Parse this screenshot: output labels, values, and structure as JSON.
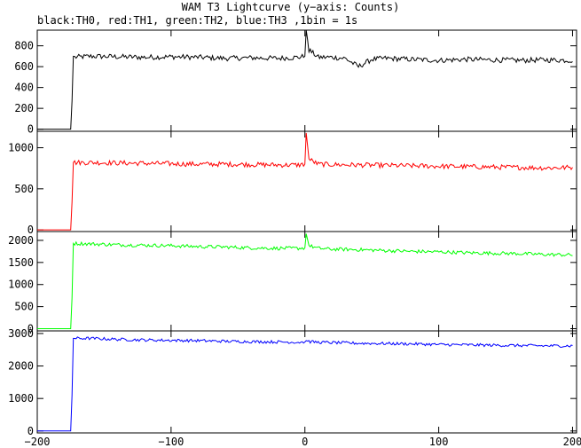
{
  "title": "WAM T3 Lightcurve (y−axis: Counts)",
  "subtitle": "black:TH0, red:TH1, green:TH2, blue:TH3 ,1bin = 1s",
  "chart_data": {
    "type": "line",
    "xlim": [
      -200,
      203
    ],
    "x_ticks": [
      -200,
      -100,
      0,
      100,
      200
    ],
    "x_tick_labels": [
      "−200",
      "−100",
      "0",
      "100",
      "200"
    ],
    "grid": false,
    "panels": [
      {
        "series_label": "TH0",
        "color": "#000000",
        "ylim": [
          -20,
          950
        ],
        "y_ticks": [
          0,
          200,
          400,
          600,
          800
        ],
        "y_tick_labels": [
          "0",
          "200",
          "400",
          "600",
          "800"
        ],
        "x": [
          -200,
          -175,
          -174,
          -173,
          -172,
          -160,
          -140,
          -120,
          -100,
          -80,
          -60,
          -40,
          -20,
          -5,
          0,
          1,
          3,
          10,
          20,
          30,
          40,
          50,
          60,
          80,
          100,
          120,
          140,
          160,
          180,
          200
        ],
        "y": [
          0,
          0,
          270,
          700,
          690,
          700,
          695,
          690,
          695,
          690,
          680,
          685,
          680,
          690,
          700,
          950,
          760,
          690,
          690,
          680,
          600,
          670,
          680,
          670,
          660,
          670,
          665,
          660,
          665,
          660
        ],
        "noise": 25
      },
      {
        "series_label": "TH1",
        "color": "#ff0000",
        "ylim": [
          -20,
          1200
        ],
        "y_ticks": [
          0,
          500,
          1000
        ],
        "y_tick_labels": [
          "0",
          "500",
          "1000"
        ],
        "x": [
          -200,
          -175,
          -174,
          -173,
          -172,
          -160,
          -140,
          -120,
          -100,
          -80,
          -60,
          -40,
          -20,
          -5,
          0,
          1,
          3,
          10,
          20,
          40,
          60,
          80,
          100,
          120,
          140,
          160,
          180,
          200
        ],
        "y": [
          0,
          0,
          340,
          820,
          820,
          820,
          815,
          810,
          805,
          800,
          800,
          795,
          790,
          790,
          800,
          1180,
          860,
          800,
          795,
          790,
          785,
          780,
          775,
          770,
          765,
          760,
          755,
          760
        ],
        "noise": 30
      },
      {
        "series_label": "TH2",
        "color": "#00ff00",
        "ylim": [
          -50,
          2200
        ],
        "y_ticks": [
          0,
          500,
          1000,
          1500,
          2000
        ],
        "y_tick_labels": [
          "0",
          "500",
          "1000",
          "1500",
          "2000"
        ],
        "x": [
          -200,
          -175,
          -174,
          -173,
          -172,
          -160,
          -140,
          -120,
          -100,
          -80,
          -60,
          -40,
          -20,
          -5,
          0,
          1,
          3,
          10,
          20,
          40,
          60,
          80,
          100,
          120,
          140,
          160,
          180,
          200
        ],
        "y": [
          0,
          0,
          700,
          1930,
          1930,
          1920,
          1900,
          1890,
          1880,
          1860,
          1850,
          1830,
          1820,
          1820,
          1830,
          2150,
          1880,
          1820,
          1800,
          1790,
          1770,
          1750,
          1740,
          1720,
          1710,
          1700,
          1680,
          1670
        ],
        "noise": 40
      },
      {
        "series_label": "TH3",
        "color": "#0000ff",
        "ylim": [
          -60,
          3080
        ],
        "y_ticks": [
          0,
          1000,
          2000,
          3000
        ],
        "y_tick_labels": [
          "0",
          "1000",
          "2000",
          "3000"
        ],
        "x": [
          -200,
          -175,
          -174,
          -173,
          -172,
          -160,
          -140,
          -120,
          -100,
          -80,
          -60,
          -40,
          -20,
          -5,
          0,
          1,
          3,
          10,
          20,
          40,
          60,
          80,
          100,
          120,
          140,
          160,
          180,
          200
        ],
        "y": [
          0,
          0,
          1100,
          2850,
          2850,
          2850,
          2820,
          2800,
          2790,
          2780,
          2760,
          2750,
          2740,
          2730,
          2740,
          2780,
          2750,
          2730,
          2720,
          2700,
          2690,
          2680,
          2660,
          2650,
          2640,
          2630,
          2620,
          2620
        ],
        "noise": 45
      }
    ]
  }
}
